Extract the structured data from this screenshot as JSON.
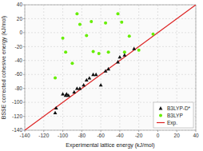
{
  "chart_data": {
    "type": "scatter",
    "xlabel": "Experimental lattice energy (kJ/mol)",
    "ylabel": "BSSE corrected cohesive energy (kJ/mol)",
    "xlim": [
      -140,
      40
    ],
    "ylim": [
      -140,
      40
    ],
    "xticks": [
      -140,
      -120,
      -100,
      -80,
      -60,
      -40,
      -20,
      0,
      20,
      40
    ],
    "yticks": [
      -140,
      -120,
      -100,
      -80,
      -60,
      -40,
      -20,
      0,
      20,
      40
    ],
    "grid": true,
    "legend": "lower right",
    "series": [
      {
        "name": "B3LYP-D*",
        "color": "#111111",
        "marker": "triangle",
        "x": [
          -108,
          -107,
          -100,
          -97,
          -96,
          -94,
          -88,
          -85,
          -82,
          -78,
          -75,
          -72,
          -68,
          -65,
          -60,
          -55,
          -52,
          -42,
          -40,
          -35,
          -25
        ],
        "values": [
          -115,
          -108,
          -88,
          -90,
          -88,
          -90,
          -85,
          -80,
          -80,
          -75,
          -68,
          -65,
          -60,
          -60,
          -75,
          -55,
          -52,
          -42,
          -35,
          -32,
          -23
        ]
      },
      {
        "name": "B3LYP",
        "color": "#66ee00",
        "marker": "circle",
        "x": [
          -108,
          -100,
          -97,
          -90,
          -85,
          -82,
          -75,
          -70,
          -68,
          -62,
          -55,
          -52,
          -42,
          -38,
          -35,
          -30,
          -20,
          -5
        ],
        "values": [
          -65,
          -8,
          -28,
          -44,
          27,
          12,
          -4,
          16,
          -27,
          -30,
          14,
          -28,
          27,
          15,
          -28,
          -5,
          -25,
          -2
        ]
      },
      {
        "name": "Exp.",
        "type": "line",
        "color": "#dd2222",
        "x": [
          -140,
          40
        ],
        "values": [
          -140,
          40
        ]
      }
    ]
  }
}
